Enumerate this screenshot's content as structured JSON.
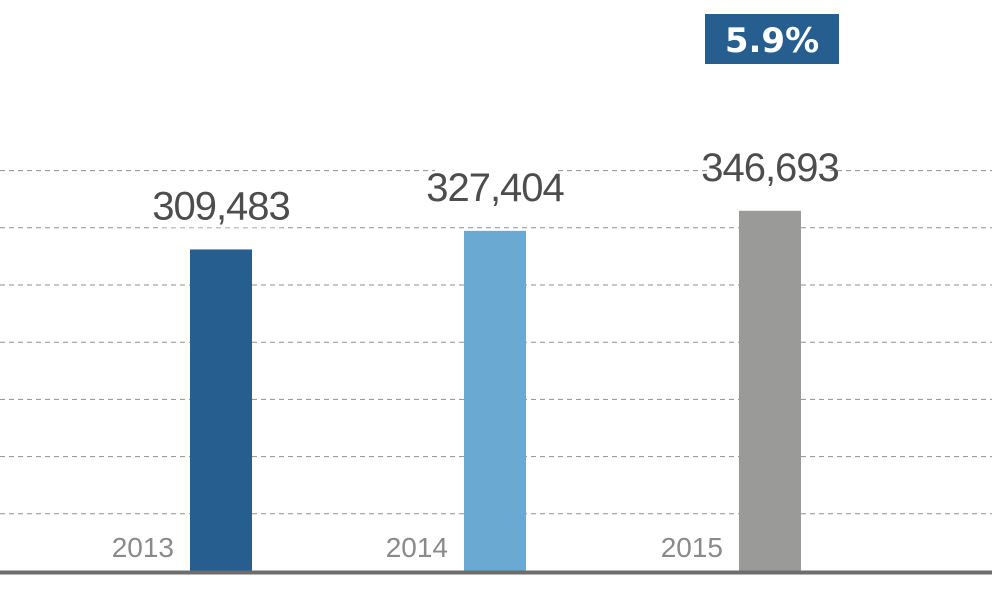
{
  "chart_data": {
    "type": "bar",
    "categories": [
      "2013",
      "2014",
      "2015"
    ],
    "values": [
      309483,
      327404,
      346693
    ],
    "value_labels": [
      "309,483",
      "327,404",
      "346,693"
    ],
    "bar_colors": [
      "#255e8f",
      "#6aaad2",
      "#9a9a98"
    ],
    "badge": {
      "text": "5.9%",
      "category": "2015",
      "color": "#255e8f"
    },
    "grid": true,
    "ylim": [
      0,
      385000
    ],
    "title": "",
    "xlabel": "",
    "ylabel": ""
  }
}
